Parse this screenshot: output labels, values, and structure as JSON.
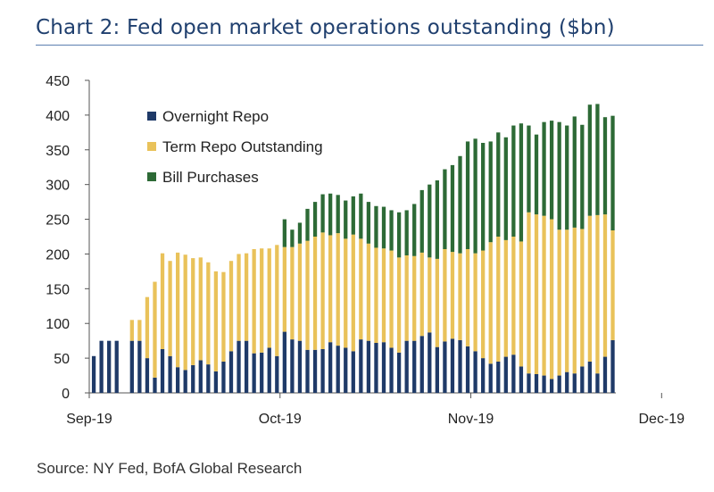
{
  "title": "Chart 2: Fed open market operations outstanding ($bn)",
  "source": "Source: NY Fed, BofA Global Research",
  "colors": {
    "overnight_repo": "#1f3a68",
    "term_repo": "#e9c25a",
    "bill_purchases": "#2d6a36",
    "axis": "#555555",
    "title": "#1f3f6e"
  },
  "chart_data": {
    "type": "bar",
    "stacked": true,
    "title": "Chart 2: Fed open market operations outstanding ($bn)",
    "xlabel": "",
    "ylabel": "",
    "ylim": [
      0,
      450
    ],
    "yticks": [
      0,
      50,
      100,
      150,
      200,
      250,
      300,
      350,
      400,
      450
    ],
    "xtick_labels": [
      {
        "label": "Sep-19",
        "index": 0
      },
      {
        "label": "Oct-19",
        "index": 25
      },
      {
        "label": "Nov-19",
        "index": 50
      },
      {
        "label": "Dec-19",
        "index": 75
      }
    ],
    "legend_position": "top-left",
    "series": [
      {
        "name": "Overnight Repo",
        "color_key": "overnight_repo",
        "values": [
          53,
          75,
          75,
          75,
          0,
          75,
          75,
          50,
          22,
          63,
          53,
          37,
          33,
          40,
          47,
          41,
          31,
          45,
          60,
          75,
          75,
          57,
          58,
          65,
          53,
          88,
          77,
          75,
          62,
          62,
          63,
          73,
          68,
          65,
          60,
          77,
          75,
          72,
          73,
          65,
          58,
          75,
          75,
          82,
          87,
          66,
          74,
          78,
          76,
          67,
          60,
          50,
          42,
          45,
          52,
          55,
          38,
          28,
          27,
          25,
          20,
          25,
          30,
          28,
          38,
          45,
          28,
          52,
          76
        ]
      },
      {
        "name": "Term Repo Outstanding",
        "color_key": "term_repo",
        "values": [
          0,
          0,
          0,
          0,
          0,
          30,
          30,
          88,
          138,
          138,
          137,
          165,
          166,
          154,
          148,
          147,
          144,
          129,
          130,
          125,
          126,
          150,
          150,
          143,
          160,
          122,
          133,
          140,
          157,
          163,
          168,
          154,
          162,
          157,
          168,
          145,
          140,
          137,
          135,
          140,
          137,
          123,
          122,
          120,
          108,
          127,
          133,
          125,
          125,
          140,
          141,
          155,
          175,
          180,
          168,
          170,
          180,
          232,
          230,
          230,
          230,
          210,
          205,
          210,
          198,
          210,
          228,
          205,
          158
        ]
      },
      {
        "name": "Bill Purchases",
        "color_key": "bill_purchases",
        "values": [
          0,
          0,
          0,
          0,
          0,
          0,
          0,
          0,
          0,
          0,
          0,
          0,
          0,
          0,
          0,
          0,
          0,
          0,
          0,
          0,
          0,
          0,
          0,
          0,
          0,
          40,
          25,
          30,
          46,
          50,
          55,
          60,
          55,
          55,
          55,
          65,
          60,
          60,
          60,
          58,
          65,
          65,
          75,
          90,
          105,
          113,
          115,
          125,
          140,
          155,
          165,
          155,
          145,
          150,
          148,
          160,
          170,
          125,
          115,
          135,
          142,
          155,
          150,
          160,
          150,
          160,
          160,
          140,
          165
        ]
      }
    ]
  }
}
